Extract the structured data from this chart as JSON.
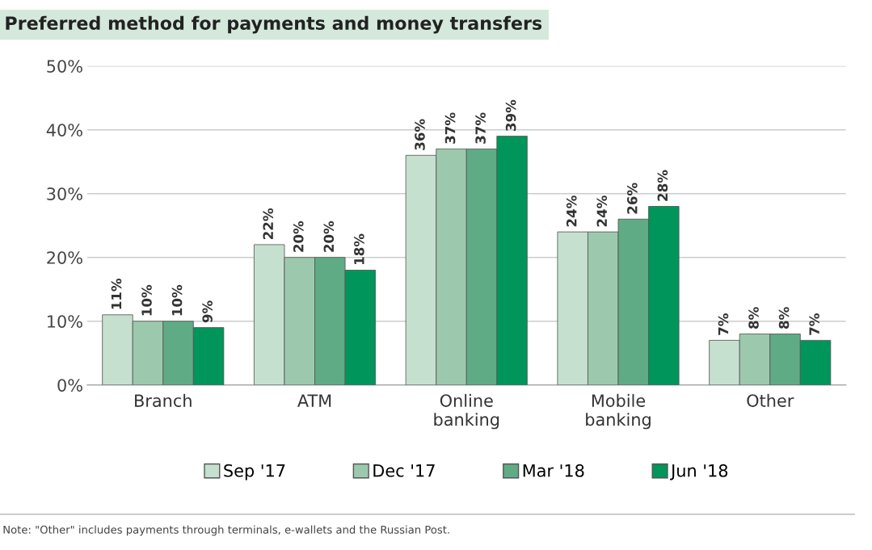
{
  "chart_data": {
    "type": "bar",
    "title": "Preferred method for payments and money transfers",
    "categories": [
      "Branch",
      "ATM",
      "Online\nbanking",
      "Mobile\nbanking",
      "Other"
    ],
    "series": [
      {
        "name": "Sep '17",
        "color": "#c6e0d0",
        "values": [
          11,
          22,
          36,
          24,
          7
        ],
        "value_labels": [
          "11%",
          "22%",
          "36%",
          "24%",
          "7%"
        ]
      },
      {
        "name": "Dec '17",
        "color": "#9cc9ae",
        "values": [
          10,
          20,
          37,
          24,
          8
        ],
        "value_labels": [
          "10%",
          "20%",
          "37%",
          "24%",
          "8%"
        ]
      },
      {
        "name": "Mar '18",
        "color": "#5fab85",
        "values": [
          10,
          20,
          37,
          26,
          8
        ],
        "value_labels": [
          "10%",
          "20%",
          "37%",
          "26%",
          "8%"
        ]
      },
      {
        "name": "Jun '18",
        "color": "#00955a",
        "values": [
          9,
          18,
          39,
          28,
          7
        ],
        "value_labels": [
          "9%",
          "18%",
          "39%",
          "28%",
          "7%"
        ]
      }
    ],
    "ylim": [
      0,
      50
    ],
    "yticks": [
      {
        "value": 0,
        "label": "0%"
      },
      {
        "value": 10,
        "label": "10%"
      },
      {
        "value": 20,
        "label": "20%"
      },
      {
        "value": 30,
        "label": "30%"
      },
      {
        "value": 40,
        "label": "40%"
      },
      {
        "value": 50,
        "label": "50%"
      }
    ],
    "grid": "y",
    "legend": "bottom",
    "annotations": [
      "Note: \"Other\" includes payments through terminals, e-wallets and the Russian Post."
    ]
  }
}
